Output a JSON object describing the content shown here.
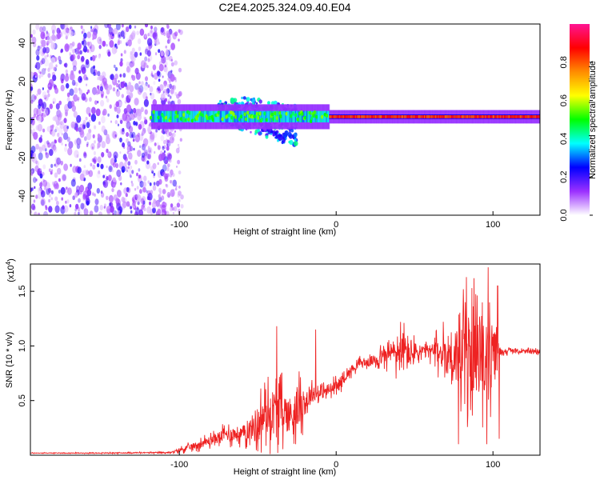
{
  "title": "C2E4.2025.324.09.40.E04",
  "chart_data": [
    {
      "type": "heatmap",
      "title": "C2E4.2025.324.09.40.E04",
      "xlabel": "Height of straight line (km)",
      "ylabel": "Frequency (Hz)",
      "xlim": [
        -195,
        130
      ],
      "ylim": [
        -50,
        50
      ],
      "xticks": [
        -100,
        0,
        100
      ],
      "yticks": [
        -40,
        -20,
        0,
        20,
        40
      ],
      "colorbar": {
        "label": "Normalized spectral amplitude",
        "range": [
          0,
          1
        ],
        "ticks": [
          0.0,
          0.2,
          0.4,
          0.6,
          0.8
        ],
        "tick_labels": [
          "0.0",
          "0.2",
          "0.4",
          "0.6",
          "0.8"
        ],
        "colormap": [
          "#ffffff",
          "#9b30ff",
          "#0000ff",
          "#00ffff",
          "#00ff00",
          "#ffff00",
          "#ff8c00",
          "#ff0000",
          "#ff1493"
        ]
      },
      "features": {
        "noise_region_x": [
          -195,
          -107
        ],
        "line_band_x": [
          -118,
          130
        ],
        "line_band_center_hz": 1.5,
        "broad_activity_x": [
          -75,
          -25
        ],
        "broad_activity_freq_range": [
          -20,
          15
        ]
      }
    },
    {
      "type": "line",
      "xlabel": "Height of straight line (km)",
      "ylabel": "SNR (10 * v/v)",
      "multiplier": "(x10",
      "exponent": "4",
      "xlim": [
        -195,
        130
      ],
      "ylim": [
        0,
        1.75
      ],
      "xticks": [
        -100,
        0,
        100
      ],
      "yticks": [
        0.5,
        1.0,
        1.5
      ],
      "ytick_labels": [
        "0.5",
        "1.0",
        "1.5"
      ],
      "series": [
        {
          "name": "SNR",
          "color": "#ee2222",
          "x": [
            -195,
            -150,
            -105,
            -100,
            -90,
            -80,
            -70,
            -60,
            -55,
            -50,
            -45,
            -40,
            -35,
            -30,
            -25,
            -20,
            -15,
            -10,
            -5,
            0,
            5,
            10,
            15,
            20,
            30,
            35,
            40,
            45,
            50,
            60,
            70,
            80,
            90,
            100,
            105,
            110,
            120,
            130
          ],
          "values": [
            0.02,
            0.02,
            0.025,
            0.05,
            0.09,
            0.14,
            0.2,
            0.2,
            0.25,
            0.3,
            0.4,
            0.42,
            0.45,
            0.38,
            0.45,
            0.5,
            0.57,
            0.58,
            0.6,
            0.63,
            0.71,
            0.79,
            0.85,
            0.85,
            0.91,
            0.95,
            0.96,
            0.96,
            0.95,
            0.96,
            0.95,
            0.95,
            0.93,
            0.92,
            0.95,
            0.96,
            0.95,
            0.95
          ],
          "noise": [
            0.005,
            0.005,
            0.01,
            0.03,
            0.05,
            0.07,
            0.1,
            0.12,
            0.15,
            0.3,
            0.3,
            0.35,
            0.3,
            0.28,
            0.32,
            0.2,
            0.12,
            0.1,
            0.1,
            0.1,
            0.07,
            0.06,
            0.06,
            0.06,
            0.12,
            0.15,
            0.3,
            0.3,
            0.15,
            0.1,
            0.3,
            0.55,
            0.55,
            0.5,
            0.05,
            0.03,
            0.03,
            0.03
          ],
          "peaks": [
            [
              -38,
              1.18
            ],
            [
              -13,
              1.15
            ],
            [
              83,
              1.63
            ],
            [
              88,
              1.62
            ],
            [
              97,
              1.72
            ],
            [
              103,
              1.55
            ]
          ],
          "dips": [
            [
              78,
              0.1
            ],
            [
              96,
              0.1
            ],
            [
              104,
              0.15
            ]
          ]
        }
      ]
    }
  ]
}
